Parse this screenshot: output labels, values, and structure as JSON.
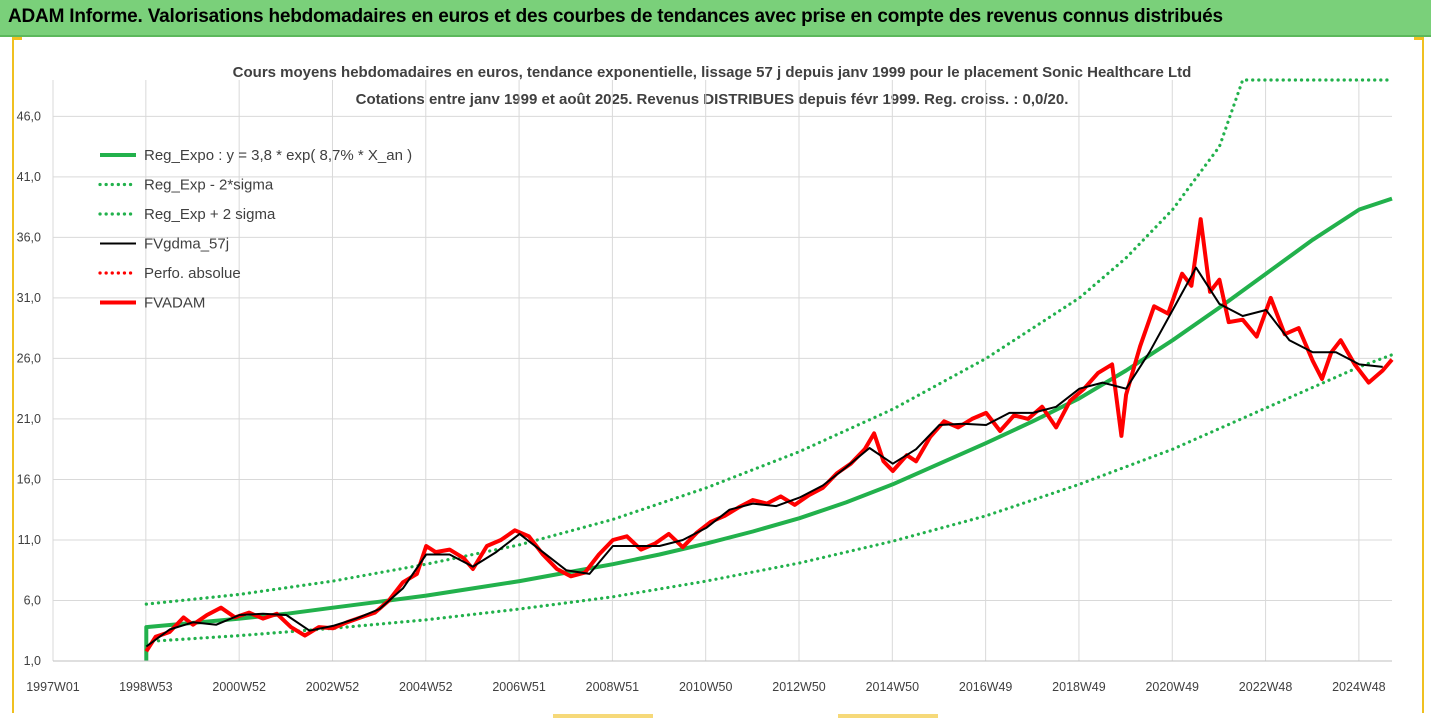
{
  "header": {
    "title": "ADAM Informe. Valorisations hebdomadaires en euros et des courbes de tendances avec prise en compte des revenus connus distribués"
  },
  "colors": {
    "header_bg": "#7ad07a",
    "trend": "#22b14c",
    "fvadam": "#ff0000",
    "fvgdma": "#000000",
    "perfo": "#ff0000"
  },
  "chart_data": {
    "type": "line",
    "title": [
      "Cours moyens hebdomadaires en euros, tendance exponentielle, lissage 57 j depuis janv 1999 pour le placement Sonic Healthcare Ltd",
      "Cotations entre janv 1999 et août 2025. Revenus DISTRIBUES depuis févr 1999. Reg. croiss. : 0,0/20."
    ],
    "xlabel": "",
    "ylabel": "",
    "ylim": [
      1.0,
      49.0
    ],
    "xlim": [
      1997.0,
      2025.7
    ],
    "y_ticks": [
      "1,0",
      "6,0",
      "11,0",
      "16,0",
      "21,0",
      "26,0",
      "31,0",
      "36,0",
      "41,0",
      "46,0"
    ],
    "x_ticks": [
      "1997W01",
      "1998W53",
      "2000W52",
      "2002W52",
      "2004W52",
      "2006W51",
      "2008W51",
      "2010W50",
      "2012W50",
      "2014W50",
      "2016W49",
      "2018W49",
      "2020W49",
      "2022W48",
      "2024W48"
    ],
    "grid": "vertical and horizontal",
    "legend_position": "top-left",
    "series": [
      {
        "name": "Reg_Expo : y = 3,8 * exp( 8,7% *  X_an )",
        "style": "solid-thick",
        "color": "#22b14c",
        "x": [
          1999.0,
          2000,
          2001,
          2002,
          2003,
          2004,
          2005,
          2006,
          2007,
          2008,
          2009,
          2010,
          2011,
          2012,
          2013,
          2014,
          2015,
          2016,
          2017,
          2018,
          2019,
          2020,
          2021,
          2022,
          2023,
          2024,
          2025,
          2025.7
        ],
        "values": [
          3.8,
          4.15,
          4.5,
          4.9,
          5.4,
          5.9,
          6.4,
          7.0,
          7.6,
          8.3,
          9.0,
          9.8,
          10.7,
          11.7,
          12.8,
          14.1,
          15.6,
          17.3,
          19.0,
          20.8,
          22.7,
          25.0,
          27.5,
          30.2,
          33.0,
          35.8,
          38.3,
          39.2
        ]
      },
      {
        "name": "Reg_Exp - 2*sigma",
        "style": "dotted",
        "color": "#22b14c",
        "x": [
          1999.0,
          2001,
          2003,
          2005,
          2007,
          2009,
          2011,
          2013,
          2015,
          2017,
          2019,
          2021,
          2023,
          2025,
          2025.7
        ],
        "values": [
          2.6,
          3.1,
          3.7,
          4.4,
          5.3,
          6.3,
          7.6,
          9.1,
          10.9,
          13.0,
          15.6,
          18.5,
          21.9,
          25.3,
          26.3
        ]
      },
      {
        "name": "Reg_Exp + 2 sigma",
        "style": "dotted",
        "color": "#22b14c",
        "x": [
          1999.0,
          2001,
          2003,
          2005,
          2007,
          2009,
          2011,
          2013,
          2015,
          2017,
          2019,
          2020,
          2021,
          2022,
          2022.5,
          2025.7
        ],
        "values": [
          5.7,
          6.5,
          7.6,
          9.0,
          10.6,
          12.7,
          15.3,
          18.3,
          21.8,
          26.0,
          31.0,
          34.3,
          38.3,
          43.5,
          49.0,
          49.0
        ]
      },
      {
        "name": "FVgdma_57j",
        "style": "solid",
        "color": "#000000",
        "x": [
          1999.0,
          1999.5,
          2000.0,
          2000.5,
          2001.0,
          2001.5,
          2002.0,
          2002.5,
          2003.0,
          2003.5,
          2004.0,
          2004.5,
          2005.0,
          2005.5,
          2006.0,
          2006.5,
          2007.0,
          2007.5,
          2008.0,
          2008.5,
          2009.0,
          2009.5,
          2010.0,
          2010.5,
          2011.0,
          2011.5,
          2012.0,
          2012.5,
          2013.0,
          2013.5,
          2014.0,
          2014.5,
          2015.0,
          2015.5,
          2016.0,
          2016.5,
          2017.0,
          2017.5,
          2018.0,
          2018.5,
          2019.0,
          2019.5,
          2020.0,
          2020.5,
          2021.0,
          2021.5,
          2022.0,
          2022.5,
          2023.0,
          2023.5,
          2024.0,
          2024.5,
          2025.0,
          2025.5
        ],
        "values": [
          2.2,
          3.6,
          4.2,
          4.0,
          4.8,
          4.9,
          4.8,
          3.5,
          3.9,
          4.5,
          5.3,
          7.0,
          9.8,
          9.8,
          8.8,
          10.0,
          11.5,
          10.0,
          8.5,
          8.2,
          10.5,
          10.5,
          10.5,
          11.0,
          12.0,
          13.5,
          14.0,
          13.8,
          14.5,
          15.5,
          17.0,
          18.6,
          17.3,
          18.5,
          20.5,
          20.6,
          20.5,
          21.5,
          21.5,
          22.0,
          23.5,
          24.0,
          23.5,
          26.5,
          30.0,
          33.5,
          30.5,
          29.5,
          30.0,
          27.5,
          26.5,
          26.5,
          25.5,
          25.3
        ]
      },
      {
        "name": "Perfo. absolue",
        "style": "dotted",
        "color": "#ff0000",
        "x": [],
        "values": []
      },
      {
        "name": "FVADAM",
        "style": "solid-thick",
        "color": "#ff0000",
        "x": [
          1999.0,
          1999.2,
          1999.5,
          1999.8,
          2000.0,
          2000.3,
          2000.6,
          2000.9,
          2001.2,
          2001.5,
          2001.8,
          2002.1,
          2002.4,
          2002.7,
          2003.0,
          2003.3,
          2003.6,
          2003.9,
          2004.2,
          2004.5,
          2004.8,
          2005.0,
          2005.2,
          2005.5,
          2005.8,
          2006.0,
          2006.3,
          2006.6,
          2006.9,
          2007.2,
          2007.5,
          2007.8,
          2008.1,
          2008.4,
          2008.7,
          2009.0,
          2009.3,
          2009.6,
          2009.9,
          2010.2,
          2010.5,
          2010.8,
          2011.1,
          2011.4,
          2011.7,
          2012.0,
          2012.3,
          2012.6,
          2012.9,
          2013.2,
          2013.5,
          2013.8,
          2014.1,
          2014.4,
          2014.6,
          2014.8,
          2015.0,
          2015.3,
          2015.5,
          2015.8,
          2016.1,
          2016.4,
          2016.7,
          2017.0,
          2017.3,
          2017.6,
          2017.9,
          2018.2,
          2018.5,
          2018.8,
          2019.1,
          2019.4,
          2019.7,
          2019.9,
          2020.0,
          2020.3,
          2020.6,
          2020.9,
          2021.2,
          2021.4,
          2021.6,
          2021.8,
          2022.0,
          2022.2,
          2022.5,
          2022.8,
          2023.1,
          2023.4,
          2023.7,
          2024.0,
          2024.2,
          2024.4,
          2024.6,
          2024.9,
          2025.2,
          2025.5,
          2025.7
        ],
        "values": [
          1.8,
          3.0,
          3.4,
          4.6,
          4.0,
          4.8,
          5.4,
          4.6,
          5.0,
          4.5,
          4.9,
          3.8,
          3.1,
          3.8,
          3.7,
          4.2,
          4.6,
          5.0,
          6.0,
          7.5,
          8.2,
          10.5,
          10.0,
          10.2,
          9.5,
          8.6,
          10.5,
          11.0,
          11.8,
          11.3,
          9.8,
          8.6,
          8.0,
          8.3,
          9.8,
          11.0,
          11.3,
          10.2,
          10.7,
          11.5,
          10.4,
          11.6,
          12.5,
          13.0,
          13.7,
          14.3,
          14.0,
          14.6,
          13.9,
          14.7,
          15.3,
          16.5,
          17.3,
          18.5,
          19.8,
          17.5,
          16.7,
          18.0,
          17.5,
          19.5,
          20.8,
          20.3,
          21.0,
          21.5,
          20.0,
          21.3,
          21.0,
          22.0,
          20.3,
          22.5,
          23.5,
          24.8,
          25.5,
          19.6,
          23.0,
          27.0,
          30.3,
          29.7,
          33.0,
          32.0,
          37.5,
          31.5,
          32.5,
          29.0,
          29.2,
          27.8,
          31.0,
          28.0,
          28.5,
          25.8,
          24.3,
          26.5,
          27.5,
          25.5,
          24.0,
          25.0,
          25.9
        ]
      }
    ]
  }
}
